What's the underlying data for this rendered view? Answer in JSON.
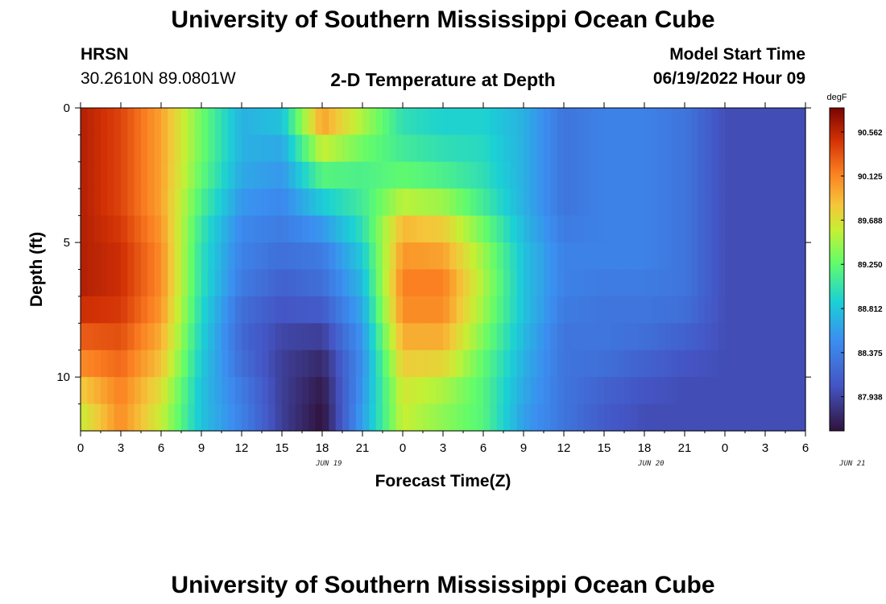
{
  "page": {
    "title": "University of Southern Mississippi Ocean Cube",
    "footer_title": "University of Southern Mississippi Ocean Cube",
    "station": "HRSN",
    "coords": "30.2610N  89.0801W",
    "plot_title": "2-D Temperature at Depth",
    "model_start_label": "Model Start Time",
    "model_start_value": "06/19/2022 Hour 09"
  },
  "chart_data": {
    "type": "heatmap",
    "title": "2-D Temperature at Depth",
    "xlabel": "Forecast Time(Z)",
    "ylabel": "Depth (ft)",
    "units": "degF",
    "x_tick_labels": [
      "0",
      "3",
      "6",
      "9",
      "12",
      "15",
      "18",
      "21",
      "0",
      "3",
      "6",
      "9",
      "12",
      "15",
      "18",
      "21",
      "0",
      "3",
      "6"
    ],
    "x_date_labels": [
      {
        "label": "JUN 19",
        "hour_index": 18.5
      },
      {
        "label": "JUN 20",
        "hour_index": 42.5
      },
      {
        "label": "JUN 21",
        "hour_index": 57.5
      }
    ],
    "x_range_hours": [
      0,
      54
    ],
    "y_tick_labels": [
      "0",
      "5",
      "10"
    ],
    "y_tick_values": [
      0,
      5,
      10
    ],
    "ylim": [
      0,
      12
    ],
    "colorbar": {
      "min": 87.6,
      "max": 90.8,
      "labels": [
        "90.562",
        "90.125",
        "89.688",
        "89.250",
        "88.812",
        "88.375",
        "87.938"
      ],
      "label_values": [
        90.562,
        90.125,
        89.688,
        89.25,
        88.812,
        88.375,
        87.938
      ]
    },
    "depth_levels_ft": [
      0,
      1,
      2,
      3,
      4,
      5,
      6,
      7,
      8,
      9,
      10,
      11
    ],
    "time_hours": [
      0,
      3,
      6,
      9,
      12,
      15,
      18,
      21,
      24,
      27,
      30,
      33,
      36,
      39,
      42,
      45,
      48,
      51,
      54
    ],
    "values": [
      [
        90.6,
        90.4,
        90.0,
        89.3,
        88.7,
        88.9,
        90.2,
        89.6,
        89.0,
        88.9,
        88.9,
        88.7,
        88.3,
        88.4,
        88.4,
        88.3,
        88.0,
        88.0,
        88.0
      ],
      [
        90.6,
        90.4,
        90.0,
        89.3,
        88.7,
        88.7,
        89.8,
        89.4,
        89.0,
        88.9,
        88.9,
        88.7,
        88.3,
        88.4,
        88.4,
        88.3,
        88.0,
        88.0,
        88.0
      ],
      [
        90.6,
        90.4,
        90.0,
        89.3,
        88.7,
        88.6,
        89.4,
        89.2,
        89.2,
        89.1,
        89.0,
        88.7,
        88.3,
        88.4,
        88.4,
        88.3,
        88.0,
        88.0,
        88.0
      ],
      [
        90.6,
        90.4,
        90.0,
        89.2,
        88.6,
        88.5,
        89.0,
        89.1,
        89.3,
        89.2,
        89.0,
        88.7,
        88.3,
        88.4,
        88.4,
        88.3,
        88.0,
        88.0,
        88.0
      ],
      [
        90.6,
        90.4,
        90.0,
        89.1,
        88.5,
        88.4,
        88.7,
        89.1,
        89.8,
        89.7,
        89.2,
        88.7,
        88.3,
        88.4,
        88.4,
        88.3,
        88.0,
        88.0,
        88.0
      ],
      [
        90.6,
        90.5,
        90.1,
        89.0,
        88.4,
        88.3,
        88.4,
        88.9,
        90.0,
        89.9,
        89.4,
        88.8,
        88.4,
        88.4,
        88.4,
        88.3,
        88.0,
        88.0,
        88.0
      ],
      [
        90.6,
        90.5,
        90.1,
        89.0,
        88.4,
        88.2,
        88.3,
        88.8,
        90.1,
        90.1,
        89.5,
        88.8,
        88.4,
        88.4,
        88.4,
        88.3,
        88.0,
        88.0,
        88.0
      ],
      [
        90.6,
        90.5,
        90.1,
        89.0,
        88.3,
        88.1,
        88.2,
        88.7,
        90.2,
        90.2,
        89.5,
        88.8,
        88.4,
        88.3,
        88.3,
        88.3,
        88.0,
        88.0,
        88.0
      ],
      [
        90.4,
        90.4,
        90.0,
        88.9,
        88.2,
        88.0,
        88.0,
        88.6,
        90.0,
        90.0,
        89.4,
        88.8,
        88.3,
        88.3,
        88.3,
        88.2,
        88.0,
        88.0,
        88.0
      ],
      [
        90.2,
        90.3,
        89.9,
        88.9,
        88.2,
        87.9,
        87.8,
        88.5,
        89.9,
        89.9,
        89.3,
        88.7,
        88.3,
        88.3,
        88.2,
        88.1,
        88.0,
        88.0,
        88.0
      ],
      [
        90.0,
        90.2,
        89.8,
        88.8,
        88.3,
        87.9,
        87.7,
        88.5,
        89.7,
        89.6,
        89.2,
        88.7,
        88.3,
        88.2,
        88.1,
        88.0,
        88.0,
        88.0,
        88.0
      ],
      [
        89.6,
        90.1,
        89.6,
        88.8,
        88.4,
        87.9,
        87.6,
        88.6,
        89.6,
        89.4,
        89.2,
        88.6,
        88.3,
        88.1,
        88.0,
        88.0,
        88.0,
        88.0,
        88.0
      ]
    ]
  }
}
